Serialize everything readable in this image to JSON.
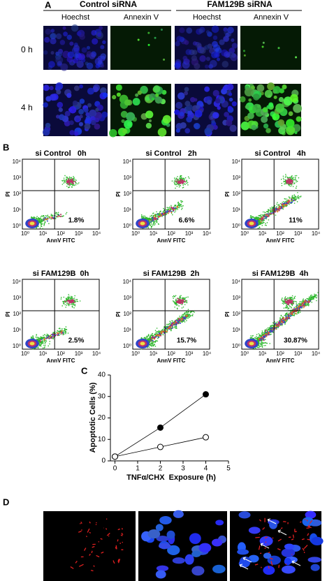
{
  "panel_a": {
    "label": "A",
    "groups": [
      "Control siRNA",
      "FAM129B siRNA"
    ],
    "columns": [
      "Hoechst",
      "Annexin V",
      "Hoechst",
      "Annexin V"
    ],
    "rows": [
      "0 h",
      "4 h"
    ]
  },
  "panel_b": {
    "label": "B",
    "x_label": "AnnV FITC",
    "y_label": "PI",
    "ticks": [
      "10⁰",
      "10¹",
      "10²",
      "10³",
      "10⁴"
    ],
    "plots": [
      {
        "title": "si Control   0h",
        "percent": "1.8%"
      },
      {
        "title": "si Control   2h",
        "percent": "6.6%"
      },
      {
        "title": "si Control   4h",
        "percent": "11%"
      },
      {
        "title": "si FAM129B  0h",
        "percent": "2.5%"
      },
      {
        "title": "si FAM129B  2h",
        "percent": "15.7%"
      },
      {
        "title": "si FAM129B  4h",
        "percent": "30.87%"
      }
    ]
  },
  "chart_data": {
    "type": "line",
    "label": "C",
    "x_label": "TNFα/CHX  Exposure (h)",
    "y_label": "Apoptotic Cells (%)",
    "x": [
      0,
      2,
      4
    ],
    "series": [
      {
        "color": "#000000",
        "values": [
          2,
          15.5,
          31
        ]
      },
      {
        "color": "#ffffff",
        "values": [
          2,
          6.5,
          11
        ]
      }
    ],
    "xlim": [
      -0.2,
      5
    ],
    "xticks": [
      0,
      1,
      2,
      3,
      4,
      5
    ],
    "ylim": [
      0,
      40
    ],
    "yticks": [
      0,
      10,
      20,
      30,
      40
    ]
  },
  "panel_d": {
    "label": "D"
  }
}
